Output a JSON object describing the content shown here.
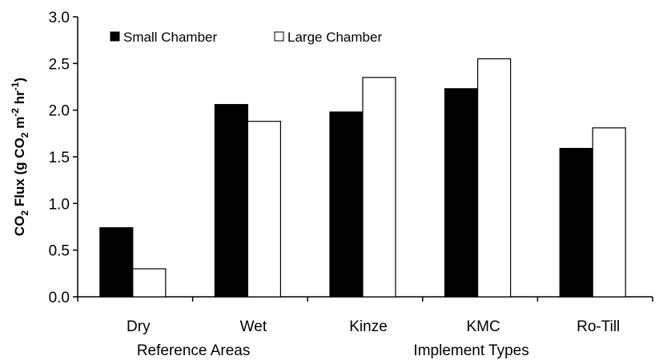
{
  "chart_data": {
    "type": "bar",
    "categories": [
      "Dry",
      "Wet",
      "Kinze",
      "KMC",
      "Ro-Till"
    ],
    "groups": [
      {
        "label": "Reference Areas",
        "categories": [
          "Dry",
          "Wet"
        ]
      },
      {
        "label": "Implement Types",
        "categories": [
          "Kinze",
          "KMC",
          "Ro-Till"
        ]
      }
    ],
    "series": [
      {
        "name": "Small Chamber",
        "color": "#000000",
        "values": [
          0.74,
          2.06,
          1.98,
          2.23,
          1.59
        ]
      },
      {
        "name": "Large Chamber",
        "color": "#ffffff",
        "values": [
          0.3,
          1.88,
          2.35,
          2.55,
          1.81
        ]
      }
    ],
    "ylabel": {
      "parts": [
        "CO",
        "2",
        " Flux (g CO",
        "2",
        " m",
        "-2",
        " hr",
        "-1",
        ")"
      ]
    },
    "yticks": [
      "0.0",
      "0.5",
      "1.0",
      "1.5",
      "2.0",
      "2.5",
      "3.0"
    ],
    "ylim": [
      0,
      3.0
    ],
    "legend_position": "top-left",
    "grid": false
  }
}
